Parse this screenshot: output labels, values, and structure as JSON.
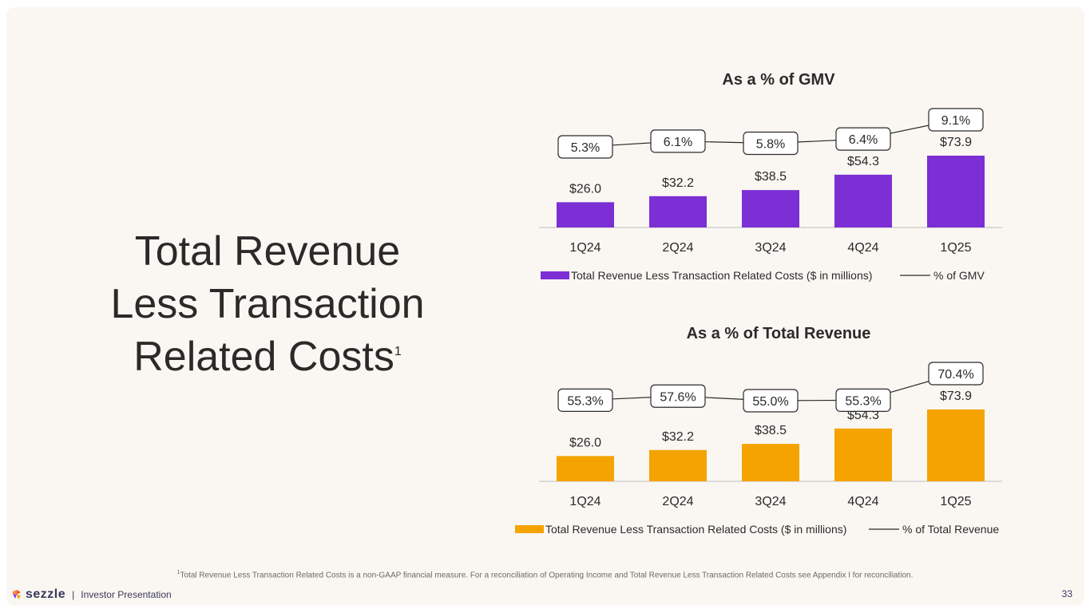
{
  "slide": {
    "title_lines": [
      "Total Revenue",
      "Less Transaction",
      "Related Costs"
    ],
    "title_superscript": "1",
    "footnote_marker": "1",
    "footnote": "Total Revenue Less Transaction Related Costs is a non-GAAP financial measure. For a reconciliation of Operating Income and Total Revenue Less Transaction Related Costs see Appendix I for reconciliation.",
    "brand": "sezzle",
    "separator": "|",
    "deck_name": "Investor Presentation",
    "page_number": "33",
    "colors": {
      "purple": "#7b2fd4",
      "orange": "#f5a300",
      "background": "#faf7f3"
    }
  },
  "chart_data": [
    {
      "type": "bar",
      "title": "As a % of GMV",
      "categories": [
        "1Q24",
        "2Q24",
        "3Q24",
        "4Q24",
        "1Q25"
      ],
      "series": [
        {
          "name": "Total Revenue Less Transaction Related Costs ($ in millions)",
          "kind": "bar",
          "color": "#7b2fd4",
          "values": [
            26.0,
            32.2,
            38.5,
            54.3,
            73.9
          ],
          "labels": [
            "$26.0",
            "$32.2",
            "$38.5",
            "$54.3",
            "$73.9"
          ]
        },
        {
          "name": "% of GMV",
          "kind": "line",
          "color": "#2b2a29",
          "values": [
            5.3,
            6.1,
            5.8,
            6.4,
            9.1
          ],
          "labels": [
            "5.3%",
            "6.1%",
            "5.8%",
            "6.4%",
            "9.1%"
          ]
        }
      ],
      "legend_position": "bottom",
      "grid": false
    },
    {
      "type": "bar",
      "title": "As a % of Total Revenue",
      "categories": [
        "1Q24",
        "2Q24",
        "3Q24",
        "4Q24",
        "1Q25"
      ],
      "series": [
        {
          "name": "Total Revenue Less Transaction Related Costs ($ in millions)",
          "kind": "bar",
          "color": "#f5a300",
          "values": [
            26.0,
            32.2,
            38.5,
            54.3,
            73.9
          ],
          "labels": [
            "$26.0",
            "$32.2",
            "$38.5",
            "$54.3",
            "$73.9"
          ]
        },
        {
          "name": "% of Total Revenue",
          "kind": "line",
          "color": "#2b2a29",
          "values": [
            55.3,
            57.6,
            55.0,
            55.3,
            70.4
          ],
          "labels": [
            "55.3%",
            "57.6%",
            "55.0%",
            "55.3%",
            "70.4%"
          ]
        }
      ],
      "legend_position": "bottom",
      "grid": false
    }
  ]
}
